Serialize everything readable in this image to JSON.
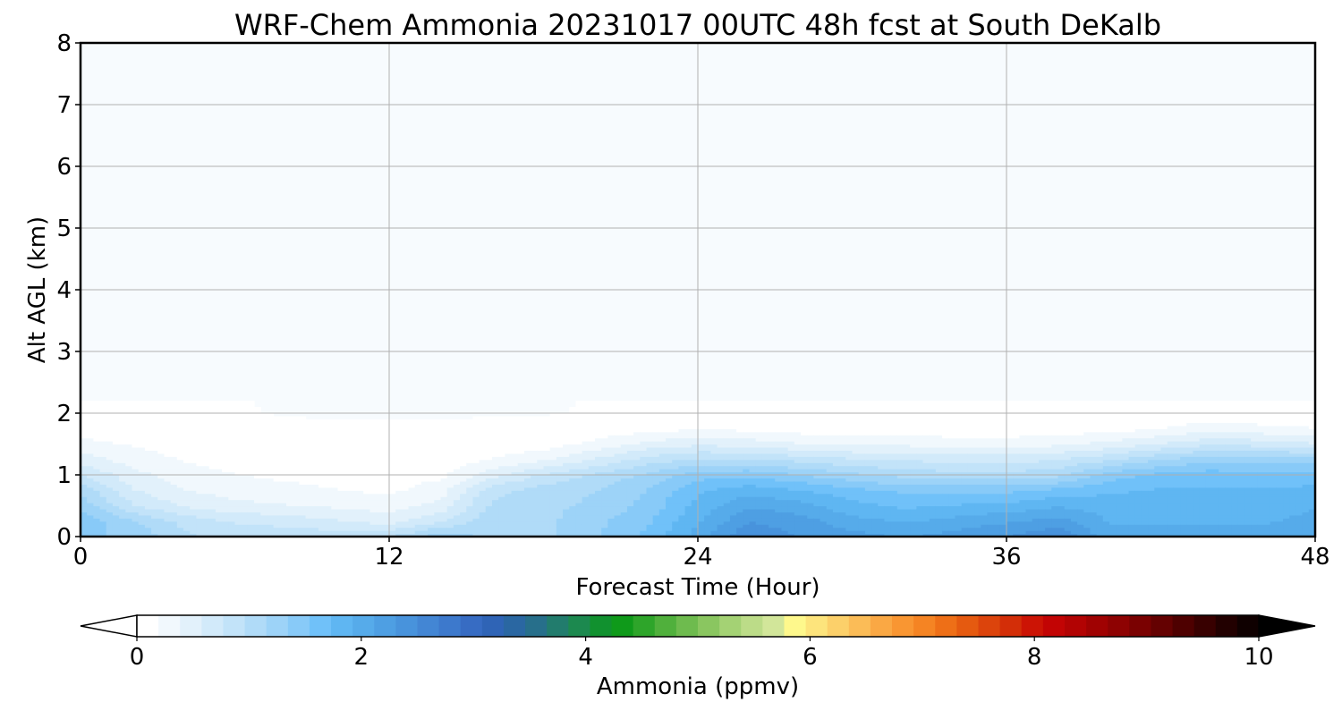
{
  "chart_data": {
    "type": "heatmap",
    "title": "WRF-Chem Ammonia  20231017 00UTC 48h fcst at South DeKalb",
    "xlabel": "Forecast Time (Hour)",
    "ylabel": "Alt AGL (km)",
    "xlim": [
      0,
      48
    ],
    "ylim": [
      0,
      8
    ],
    "x_ticks": [
      0,
      12,
      24,
      36,
      48
    ],
    "y_ticks": [
      0,
      1,
      2,
      3,
      4,
      5,
      6,
      7,
      8
    ],
    "grid": true,
    "colorbar": {
      "label": "Ammonia  (ppmv)",
      "range": [
        0,
        10
      ],
      "ticks": [
        0,
        2,
        4,
        6,
        8,
        10
      ],
      "extend": "both",
      "colors": [
        "#ffffff",
        "#f1f8fd",
        "#e2f1fb",
        "#d2eafa",
        "#c2e3f9",
        "#b0dbf8",
        "#9dd3f8",
        "#88caf8",
        "#70c1f9",
        "#5fb6f2",
        "#56abea",
        "#4e9fe3",
        "#4893dc",
        "#4386d4",
        "#3d79cc",
        "#376cc3",
        "#2f64b6",
        "#2a67a2",
        "#276f8b",
        "#227c6d",
        "#1c894f",
        "#11912f",
        "#0f9a1a",
        "#2ea52a",
        "#50b03c",
        "#6ebb4e",
        "#8ac660",
        "#a4d274",
        "#bcdc88",
        "#d2e69a",
        "#fef88c",
        "#fde47c",
        "#fcd06a",
        "#fbbc57",
        "#faa844",
        "#f99632",
        "#f58423",
        "#ee6f17",
        "#e55a10",
        "#dc440c",
        "#d32e08",
        "#cc1405",
        "#c20404",
        "#b20303",
        "#a00202",
        "#8e0202",
        "#7a0101",
        "#640101",
        "#4e0000",
        "#380000",
        "#220000",
        "#0f0000"
      ],
      "under_color": "#ffffff",
      "over_color": "#000000"
    },
    "x": [
      0,
      2,
      4,
      6,
      8,
      10,
      12,
      14,
      16,
      18,
      20,
      22,
      24,
      26,
      28,
      30,
      32,
      34,
      36,
      38,
      40,
      42,
      44,
      46,
      48
    ],
    "y": [
      0,
      0.25,
      0.5,
      0.75,
      1.0,
      1.25,
      1.5,
      1.75,
      2.0,
      3.0,
      8.0
    ],
    "z": [
      [
        1.4,
        1.3,
        1.0,
        0.9,
        0.9,
        0.9,
        0.95,
        1.3,
        1.1,
        1.1,
        1.3,
        1.6,
        2.0,
        2.5,
        2.3,
        2.2,
        2.1,
        2.2,
        2.3,
        2.5,
        2.0,
        2.0,
        2.0,
        2.0,
        2.0
      ],
      [
        1.5,
        1.2,
        0.9,
        0.75,
        0.7,
        0.6,
        0.5,
        0.75,
        1.1,
        1.1,
        1.3,
        1.5,
        1.9,
        2.3,
        2.2,
        2.0,
        1.9,
        2.0,
        2.1,
        2.2,
        1.9,
        1.9,
        1.9,
        1.9,
        2.0
      ],
      [
        1.3,
        0.8,
        0.55,
        0.45,
        0.4,
        0.35,
        0.3,
        0.45,
        1.0,
        1.1,
        1.2,
        1.4,
        1.8,
        2.1,
        2.0,
        1.8,
        1.7,
        1.75,
        1.8,
        1.9,
        1.85,
        1.8,
        1.8,
        1.8,
        1.9
      ],
      [
        1.1,
        0.6,
        0.4,
        0.3,
        0.25,
        0.2,
        0.15,
        0.3,
        0.9,
        1.05,
        1.15,
        1.35,
        1.7,
        1.85,
        1.75,
        1.6,
        1.5,
        1.5,
        1.5,
        1.6,
        1.7,
        1.75,
        1.75,
        1.75,
        1.8
      ],
      [
        0.8,
        0.45,
        0.3,
        0.2,
        0.15,
        0.12,
        0.1,
        0.15,
        0.5,
        0.8,
        1.0,
        1.2,
        1.45,
        1.5,
        1.35,
        1.2,
        1.1,
        1.05,
        1.05,
        1.1,
        1.45,
        1.6,
        1.65,
        1.6,
        1.6
      ],
      [
        0.5,
        0.3,
        0.18,
        0.1,
        0.08,
        0.06,
        0.05,
        0.05,
        0.2,
        0.35,
        0.6,
        0.85,
        1.0,
        1.0,
        0.9,
        0.8,
        0.75,
        0.7,
        0.7,
        0.75,
        0.95,
        1.15,
        1.3,
        1.3,
        1.25
      ],
      [
        0.25,
        0.18,
        0.1,
        0.05,
        0.04,
        0.03,
        0.02,
        0.02,
        0.05,
        0.1,
        0.25,
        0.45,
        0.55,
        0.5,
        0.4,
        0.35,
        0.35,
        0.3,
        0.3,
        0.35,
        0.45,
        0.6,
        0.75,
        0.7,
        0.6
      ],
      [
        0.12,
        0.08,
        0.05,
        0.03,
        0.02,
        0.01,
        0.01,
        0.01,
        0.02,
        0.03,
        0.06,
        0.12,
        0.18,
        0.15,
        0.1,
        0.08,
        0.08,
        0.07,
        0.07,
        0.08,
        0.12,
        0.2,
        0.3,
        0.25,
        0.2
      ],
      [
        0.03,
        0.02,
        0.01,
        0.01,
        0.0,
        0.0,
        0.0,
        0.0,
        0.0,
        0.0,
        0.01,
        0.02,
        0.03,
        0.03,
        0.02,
        0.02,
        0.02,
        0.02,
        0.02,
        0.02,
        0.03,
        0.04,
        0.05,
        0.04,
        0.04
      ],
      [
        0.0,
        0.0,
        0.0,
        0.0,
        0.0,
        0.0,
        0.0,
        0.0,
        0.0,
        0.0,
        0.0,
        0.0,
        0.0,
        0.0,
        0.0,
        0.0,
        0.0,
        0.0,
        0.0,
        0.0,
        0.0,
        0.0,
        0.0,
        0.0,
        0.0
      ],
      [
        0.0,
        0.0,
        0.0,
        0.0,
        0.0,
        0.0,
        0.0,
        0.0,
        0.0,
        0.0,
        0.0,
        0.0,
        0.0,
        0.0,
        0.0,
        0.0,
        0.0,
        0.0,
        0.0,
        0.0,
        0.0,
        0.0,
        0.0,
        0.0,
        0.0
      ]
    ]
  }
}
